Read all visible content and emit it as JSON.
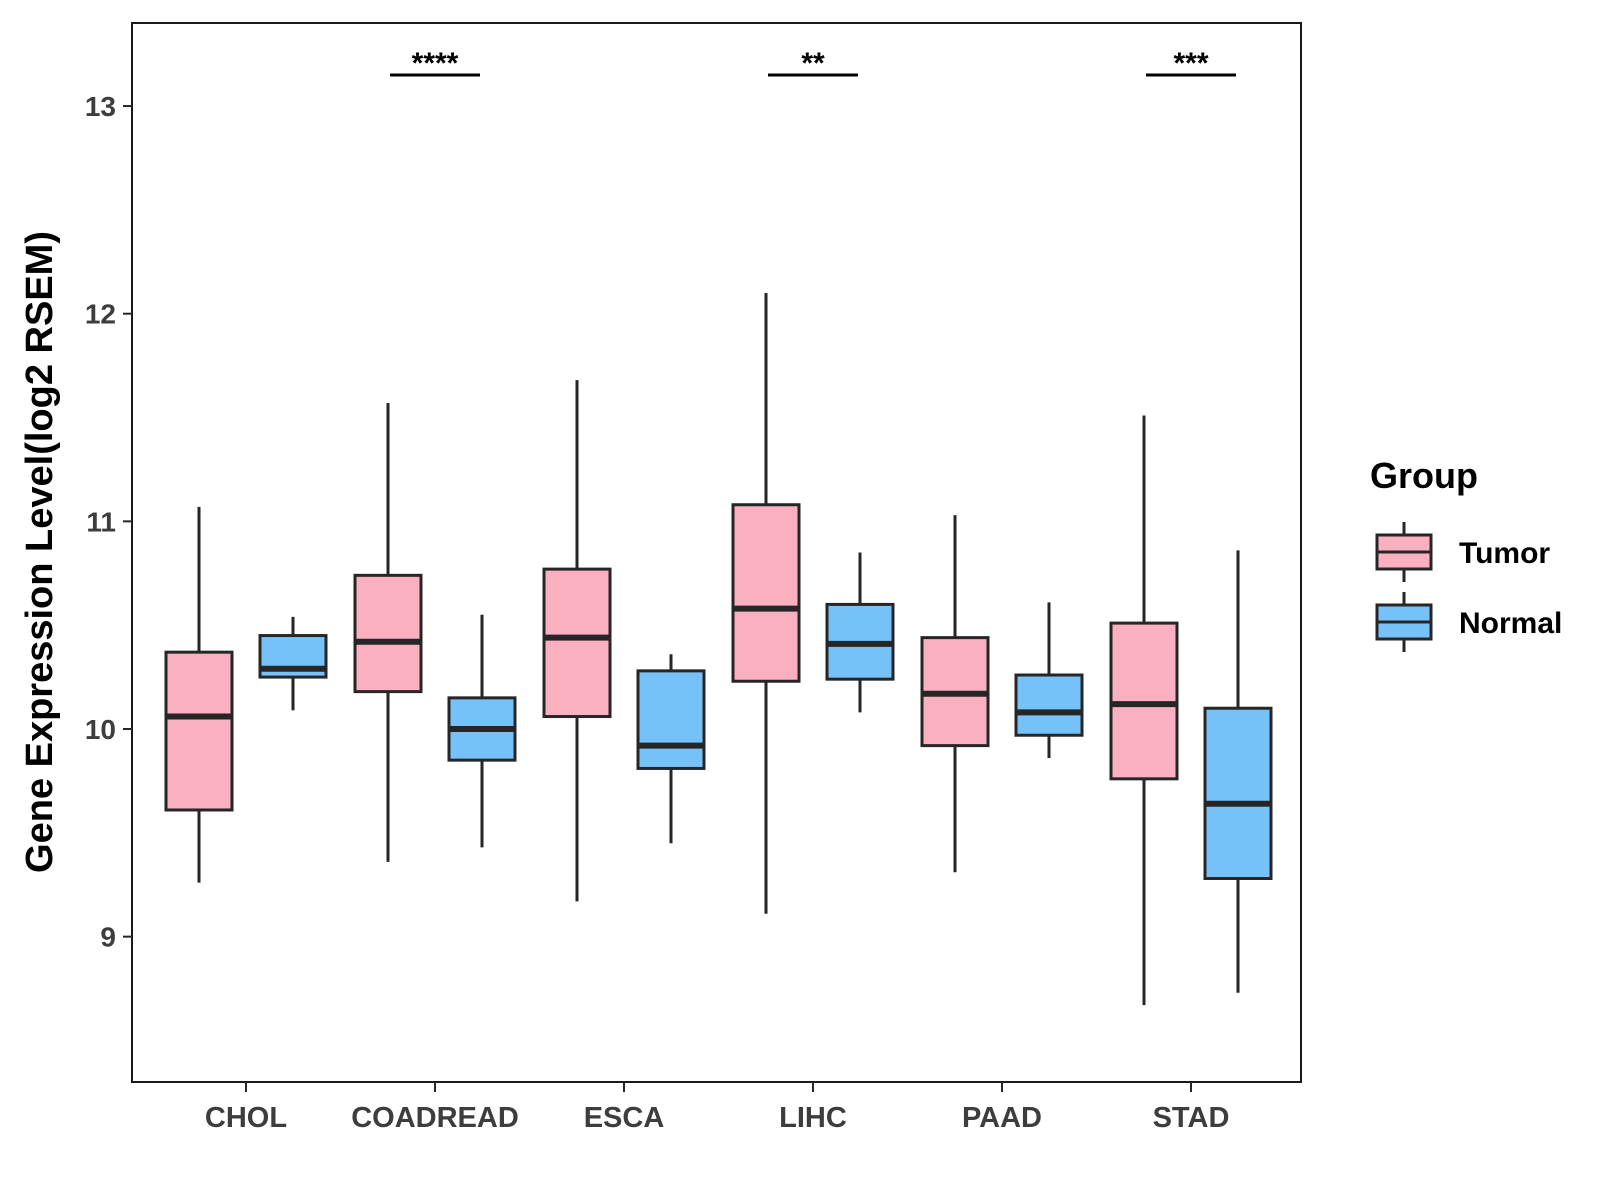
{
  "chart_data": {
    "type": "boxplot",
    "title": "",
    "xlabel": "",
    "ylabel": "Gene Expression Level(log2 RSEM)",
    "ylim": [
      8.3,
      13.4
    ],
    "yticks": [
      9,
      10,
      11,
      12,
      13
    ],
    "categories": [
      "CHOL",
      "COADREAD",
      "ESCA",
      "LIHC",
      "PAAD",
      "STAD"
    ],
    "legend": {
      "title": "Group",
      "position": "right"
    },
    "series": [
      {
        "name": "Tumor",
        "color": "#FBB0C2",
        "boxes": [
          {
            "min": 9.26,
            "q1": 9.61,
            "median": 10.06,
            "q3": 10.37,
            "max": 11.07
          },
          {
            "min": 9.36,
            "q1": 10.18,
            "median": 10.42,
            "q3": 10.74,
            "max": 11.57
          },
          {
            "min": 9.17,
            "q1": 10.06,
            "median": 10.44,
            "q3": 10.77,
            "max": 11.68
          },
          {
            "min": 9.11,
            "q1": 10.23,
            "median": 10.58,
            "q3": 11.08,
            "max": 12.1
          },
          {
            "min": 9.31,
            "q1": 9.92,
            "median": 10.17,
            "q3": 10.44,
            "max": 11.03
          },
          {
            "min": 8.67,
            "q1": 9.76,
            "median": 10.12,
            "q3": 10.51,
            "max": 11.51
          }
        ]
      },
      {
        "name": "Normal",
        "color": "#76C2F8",
        "boxes": [
          {
            "min": 10.09,
            "q1": 10.25,
            "median": 10.29,
            "q3": 10.45,
            "max": 10.54
          },
          {
            "min": 9.43,
            "q1": 9.85,
            "median": 10.0,
            "q3": 10.15,
            "max": 10.55
          },
          {
            "min": 9.45,
            "q1": 9.81,
            "median": 9.92,
            "q3": 10.28,
            "max": 10.36
          },
          {
            "min": 10.08,
            "q1": 10.24,
            "median": 10.41,
            "q3": 10.6,
            "max": 10.85
          },
          {
            "min": 9.86,
            "q1": 9.97,
            "median": 10.08,
            "q3": 10.26,
            "max": 10.61
          },
          {
            "min": 8.73,
            "q1": 9.28,
            "median": 9.64,
            "q3": 10.1,
            "max": 10.86
          }
        ]
      }
    ],
    "significance": [
      {
        "category": "COADREAD",
        "label": "****"
      },
      {
        "category": "LIHC",
        "label": "**"
      },
      {
        "category": "STAD",
        "label": "***"
      }
    ]
  }
}
